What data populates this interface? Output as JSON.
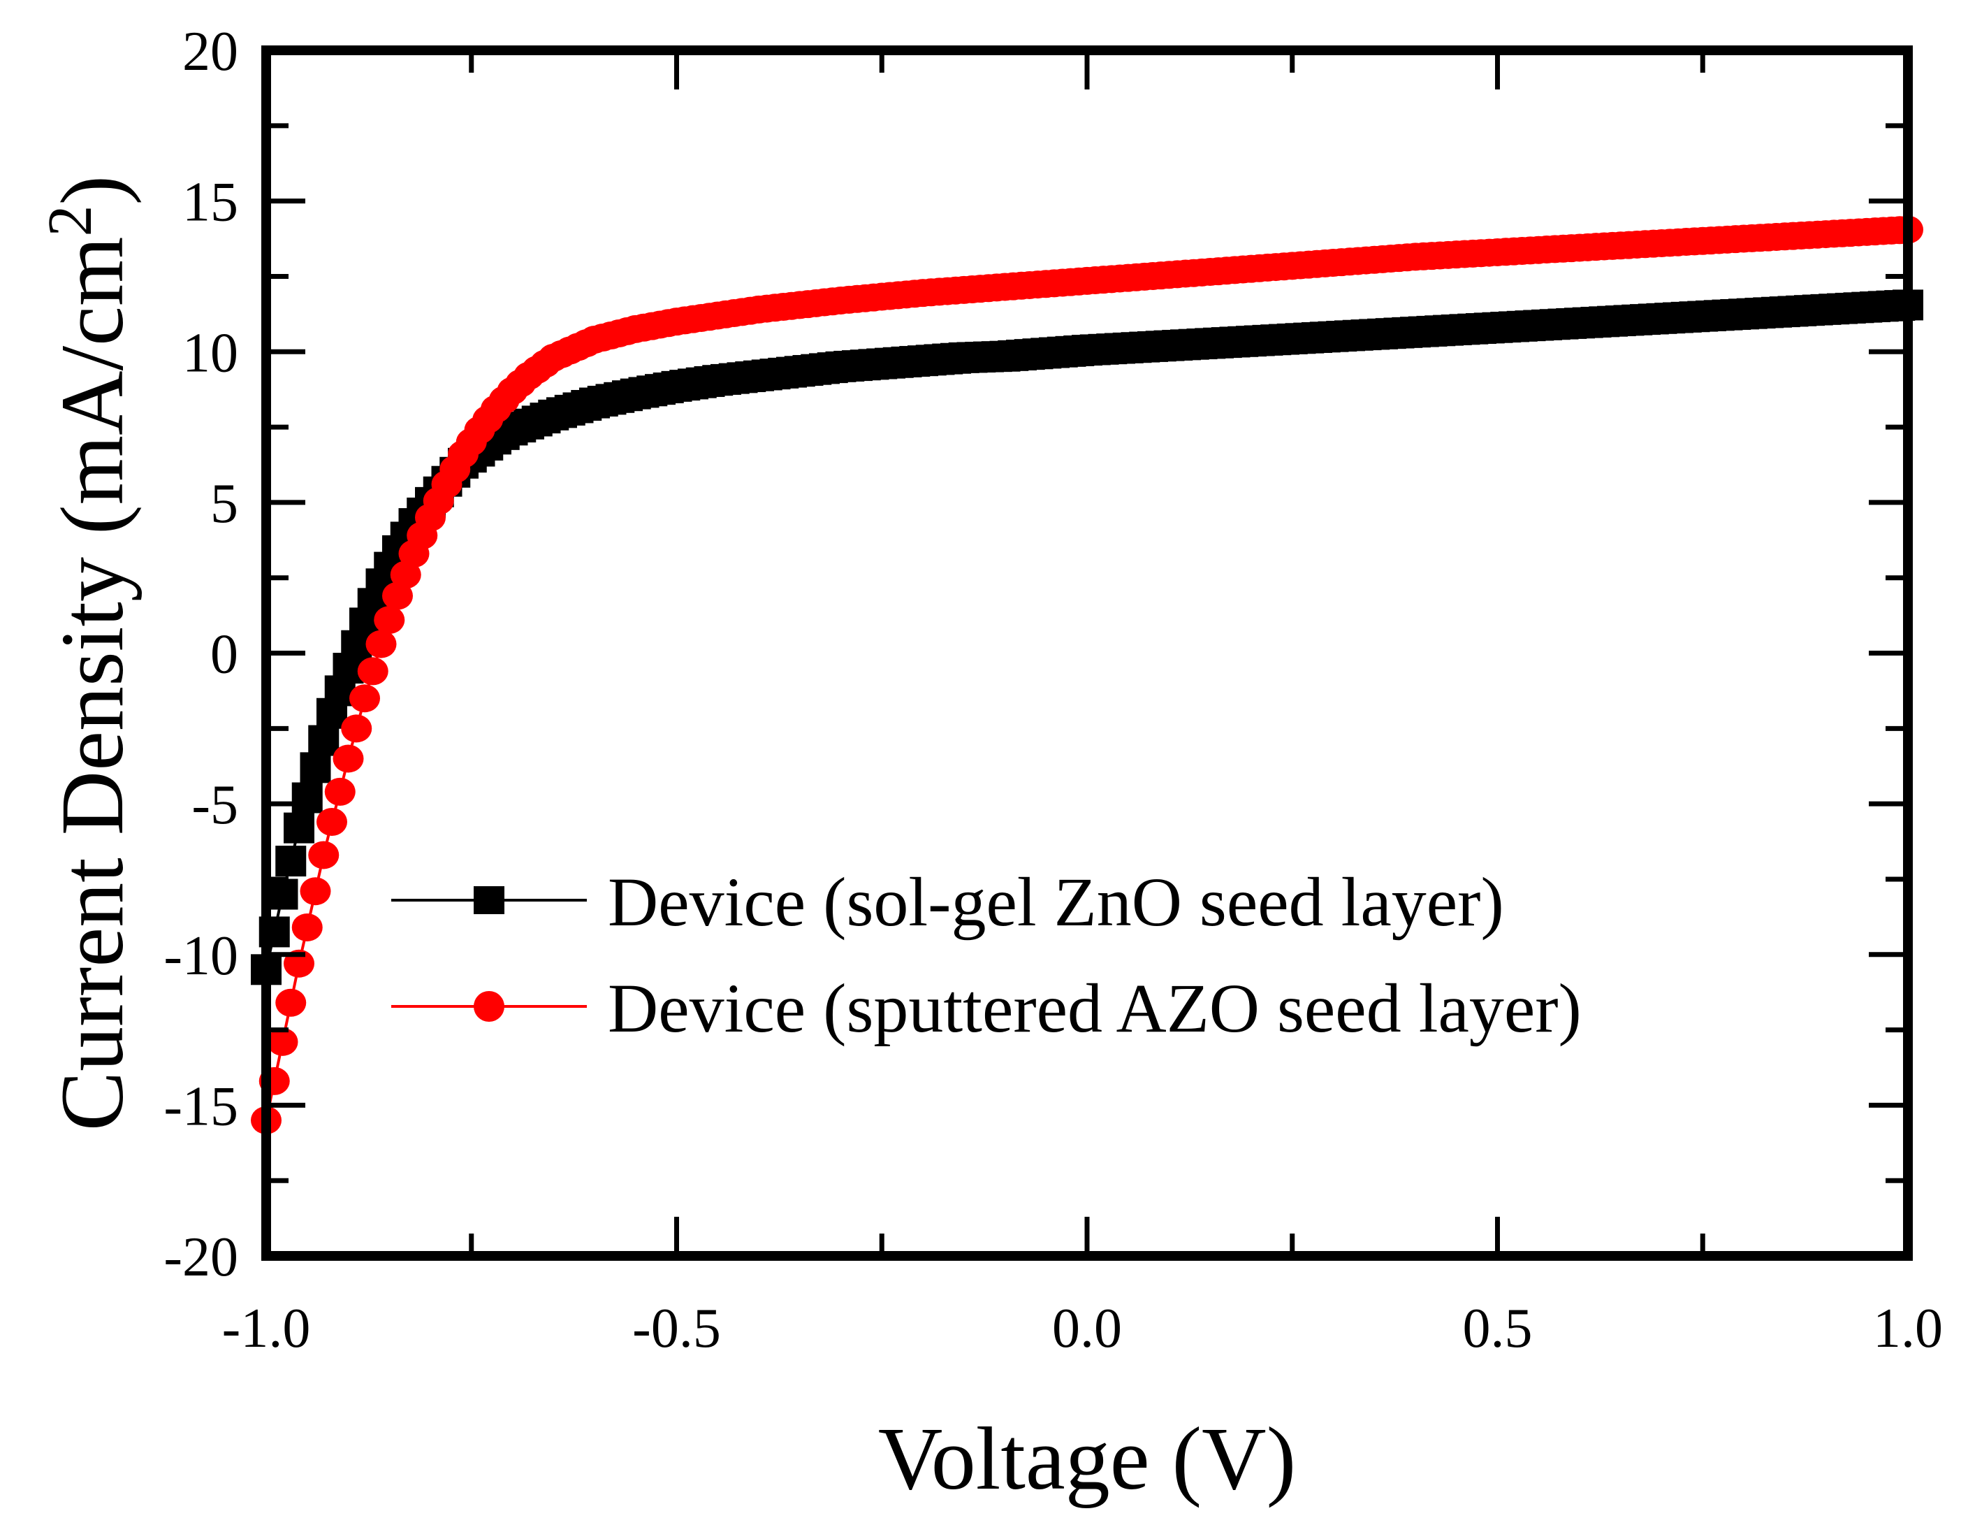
{
  "chart_data": {
    "type": "line",
    "title": "",
    "xlabel": "Voltage (V)",
    "ylabel": "Current Density (mA/cm",
    "ylabel_superscript": "2",
    "ylabel_close": ")",
    "xlim": [
      -1.0,
      1.0
    ],
    "ylim": [
      -20,
      20
    ],
    "x_ticks": [
      -1.0,
      -0.5,
      0.0,
      0.5,
      1.0
    ],
    "x_tick_labels": [
      "-1.0",
      "-0.5",
      "0.0",
      "0.5",
      "1.0"
    ],
    "x_minor_ticks": [
      -0.75,
      -0.25,
      0.25,
      0.75
    ],
    "y_ticks": [
      -20,
      -15,
      -10,
      -5,
      0,
      5,
      10,
      15,
      20
    ],
    "y_tick_labels": [
      "-20",
      "-15",
      "-10",
      "-5",
      "0",
      "5",
      "10",
      "15",
      "20"
    ],
    "y_minor_ticks": [
      -17.5,
      -12.5,
      -7.5,
      -2.5,
      2.5,
      7.5,
      12.5,
      17.5
    ],
    "grid": false,
    "legend_position": "center-left",
    "series": [
      {
        "name": "Device (sol-gel ZnO seed layer)",
        "color": "#000000",
        "marker": "square",
        "x": [
          -1.0,
          -0.98,
          -0.96,
          -0.94,
          -0.92,
          -0.9,
          -0.88,
          -0.86,
          -0.84,
          -0.82,
          -0.8,
          -0.78,
          -0.76,
          -0.74,
          -0.72,
          -0.7,
          -0.65,
          -0.6,
          -0.55,
          -0.5,
          -0.45,
          -0.4,
          -0.35,
          -0.3,
          -0.25,
          -0.2,
          -0.15,
          -0.1,
          -0.05,
          0.0,
          0.1,
          0.2,
          0.3,
          0.4,
          0.5,
          0.6,
          0.7,
          0.8,
          0.9,
          1.0
        ],
        "y": [
          -10.5,
          -8.0,
          -5.8,
          -3.8,
          -2.0,
          -0.5,
          1.0,
          2.3,
          3.4,
          4.3,
          5.0,
          5.7,
          6.3,
          6.7,
          7.1,
          7.4,
          7.9,
          8.3,
          8.6,
          8.85,
          9.05,
          9.2,
          9.35,
          9.5,
          9.6,
          9.7,
          9.8,
          9.85,
          9.95,
          10.05,
          10.2,
          10.35,
          10.5,
          10.65,
          10.8,
          10.95,
          11.1,
          11.25,
          11.4,
          11.55
        ]
      },
      {
        "name": "Device (sputtered AZO seed layer)",
        "color": "#ff0000",
        "marker": "circle",
        "x": [
          -1.0,
          -0.99,
          -0.98,
          -0.97,
          -0.96,
          -0.95,
          -0.94,
          -0.93,
          -0.92,
          -0.91,
          -0.9,
          -0.89,
          -0.88,
          -0.87,
          -0.86,
          -0.85,
          -0.84,
          -0.83,
          -0.82,
          -0.81,
          -0.8,
          -0.78,
          -0.76,
          -0.74,
          -0.72,
          -0.7,
          -0.68,
          -0.65,
          -0.6,
          -0.55,
          -0.5,
          -0.45,
          -0.4,
          -0.3,
          -0.2,
          -0.1,
          0.0,
          0.1,
          0.2,
          0.3,
          0.4,
          0.5,
          0.6,
          0.7,
          0.8,
          0.9,
          1.0
        ],
        "y": [
          -15.5,
          -14.2,
          -12.9,
          -11.6,
          -10.3,
          -9.1,
          -7.9,
          -6.7,
          -5.6,
          -4.6,
          -3.5,
          -2.5,
          -1.5,
          -0.6,
          0.3,
          1.1,
          1.9,
          2.6,
          3.3,
          3.9,
          4.5,
          5.6,
          6.6,
          7.4,
          8.1,
          8.7,
          9.2,
          9.8,
          10.4,
          10.75,
          11.0,
          11.2,
          11.4,
          11.7,
          11.95,
          12.15,
          12.35,
          12.55,
          12.75,
          12.95,
          13.15,
          13.3,
          13.45,
          13.6,
          13.75,
          13.9,
          14.05
        ]
      }
    ]
  }
}
